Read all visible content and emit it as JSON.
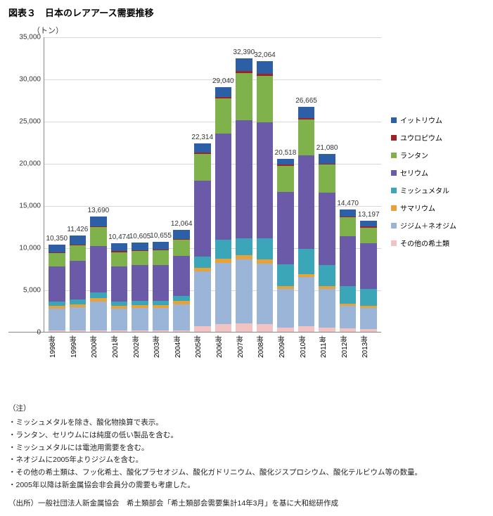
{
  "title": "図表３　日本のレアアース需要推移",
  "y_unit": "（トン）",
  "chart": {
    "type": "stacked-bar",
    "ymax": 35000,
    "ytick_step": 5000,
    "yticks": [
      "0",
      "5,000",
      "10,000",
      "15,000",
      "20,000",
      "25,000",
      "30,000",
      "35,000"
    ],
    "categories": [
      "1998年",
      "1999年",
      "2000年",
      "2001年",
      "2002年",
      "2003年",
      "2004年",
      "2005年",
      "2006年",
      "2007年",
      "2008年",
      "2009年",
      "2010年",
      "2011年",
      "2012年",
      "2013年"
    ],
    "totals": [
      "10,350",
      "11,426",
      "13,690",
      "10,474",
      "10,605",
      "10,655",
      "12,064",
      "22,314",
      "29,040",
      "32,390",
      "32,064",
      "20,518",
      "26,665",
      "21,080",
      "14,470",
      "13,197"
    ],
    "series": [
      {
        "key": "other",
        "label": "その他の希土類",
        "color": "#f2c3c3"
      },
      {
        "key": "didymium",
        "label": "ジジム＋ネオジム",
        "color": "#9bb5d9"
      },
      {
        "key": "samarium",
        "label": "サマリウム",
        "color": "#e8a23a"
      },
      {
        "key": "mischmetal",
        "label": "ミッシュメタル",
        "color": "#3aa6b8"
      },
      {
        "key": "cerium",
        "label": "セリウム",
        "color": "#6a5aa8"
      },
      {
        "key": "lanthanum",
        "label": "ランタン",
        "color": "#7fb24a"
      },
      {
        "key": "europium",
        "label": "ユウロピウム",
        "color": "#9c2424"
      },
      {
        "key": "yttrium",
        "label": "イットリウム",
        "color": "#2d5fa6"
      }
    ],
    "data": {
      "other": [
        150,
        150,
        200,
        150,
        150,
        150,
        180,
        700,
        900,
        1000,
        900,
        500,
        700,
        500,
        400,
        350
      ],
      "didymium": [
        2600,
        2800,
        3400,
        2600,
        2700,
        2700,
        3100,
        6500,
        7300,
        7600,
        7200,
        4600,
        5800,
        4600,
        2700,
        2500
      ],
      "samarium": [
        300,
        300,
        400,
        300,
        300,
        300,
        350,
        400,
        500,
        500,
        450,
        300,
        350,
        300,
        250,
        220
      ],
      "mischmetal": [
        500,
        600,
        700,
        500,
        500,
        500,
        600,
        1300,
        2200,
        2000,
        2500,
        2600,
        3000,
        2500,
        2100,
        2000
      ],
      "cerium": [
        4200,
        4600,
        5500,
        4200,
        4300,
        4300,
        4800,
        9000,
        12600,
        14000,
        13800,
        8600,
        11100,
        8600,
        5900,
        5400
      ],
      "lanthanum": [
        1600,
        1800,
        2200,
        1700,
        1650,
        1700,
        1900,
        3200,
        4200,
        5600,
        5500,
        3100,
        4200,
        3300,
        2200,
        1900
      ],
      "europium": [
        100,
        100,
        120,
        100,
        100,
        100,
        110,
        114,
        140,
        190,
        214,
        118,
        165,
        130,
        120,
        127
      ],
      "yttrium": [
        900,
        1076,
        1170,
        924,
        905,
        905,
        1024,
        1100,
        1200,
        1500,
        1500,
        700,
        1350,
        1150,
        800,
        700
      ]
    },
    "background_color": "#ffffff",
    "grid_color": "#d9d9d9"
  },
  "notes_head": "（注）",
  "notes": [
    "・ミッシュメタルを除き、酸化物換算で表示。",
    "・ランタン、セリウムには純度の低い製品を含む。",
    "・ミッシュメタルには電池用需要を含む。",
    "・ネオジムに2005年よりジジムを含む。",
    "・その他の希土類は、フッ化希土、酸化プラセオジム、酸化ガドリニウム、酸化ジスプロシウム、酸化テルビウム等の数量。",
    "・2005年以降は新金属協会非会員分の需要も考慮した。"
  ],
  "source": "（出所）一般社団法人新金属協会　希土類部会「希土類部会需要集計14年3月」を基に大和総研作成"
}
